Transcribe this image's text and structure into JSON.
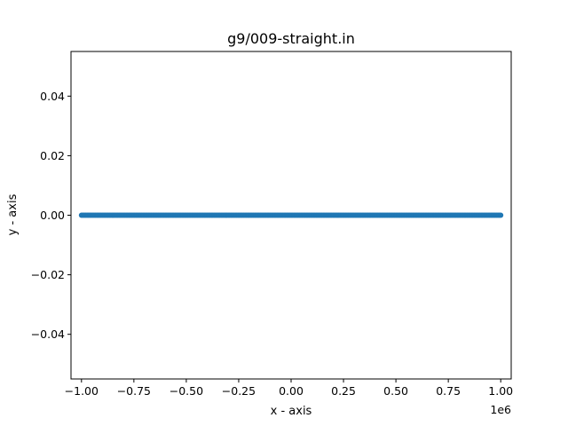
{
  "chart_data": {
    "type": "scatter",
    "title": "g9/009-straight.in",
    "xlabel": "x - axis",
    "ylabel": "y - axis",
    "x_offset_label": "1e6",
    "xlim": [
      -1050000,
      1050000
    ],
    "ylim": [
      -0.055,
      0.055
    ],
    "x_ticks": [
      -1000000,
      -750000,
      -500000,
      -250000,
      0,
      250000,
      500000,
      750000,
      1000000
    ],
    "x_tick_labels": [
      "−1.00",
      "−0.75",
      "−0.50",
      "−0.25",
      "0.00",
      "0.25",
      "0.50",
      "0.75",
      "1.00"
    ],
    "y_ticks": [
      -0.04,
      -0.02,
      0.0,
      0.02,
      0.04
    ],
    "y_tick_labels": [
      "−0.04",
      "−0.02",
      "0.00",
      "0.02",
      "0.04"
    ],
    "grid": false,
    "series": [
      {
        "color": "#1f77b4",
        "x_range": [
          -1000000,
          1000000
        ],
        "y": 0.0
      }
    ]
  }
}
